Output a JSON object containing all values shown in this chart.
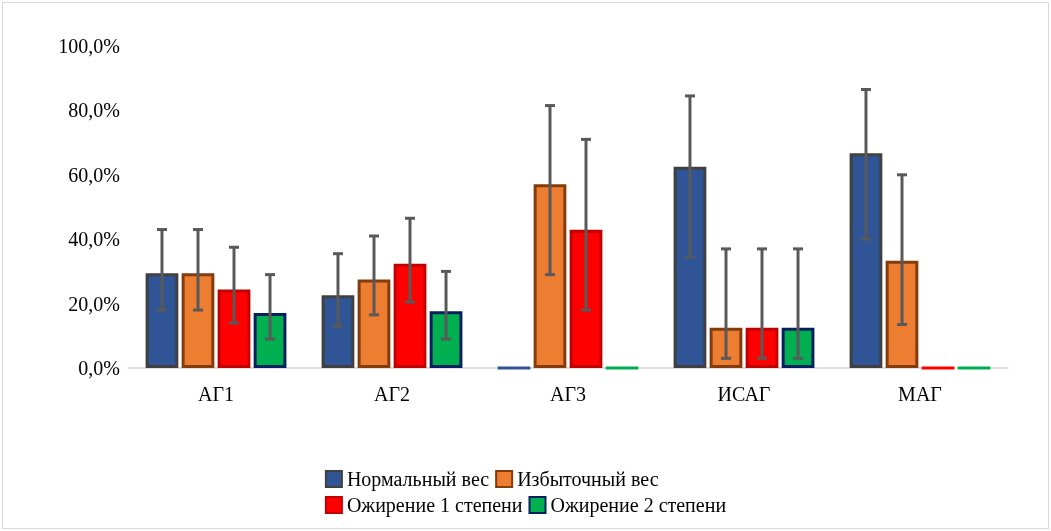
{
  "chart_data": {
    "type": "bar",
    "categories": [
      "АГ1",
      "АГ2",
      "АГ3",
      "ИСАГ",
      "МАГ"
    ],
    "series": [
      {
        "name": "Нормальный вес",
        "color": "#2f5597",
        "values": [
          29.4,
          22.6,
          0,
          62.5,
          66.7
        ],
        "errors": [
          [
            18,
            43
          ],
          [
            13,
            35.5
          ],
          null,
          [
            34.5,
            84.5
          ],
          [
            40,
            86.5
          ]
        ]
      },
      {
        "name": "Избыточный вес",
        "color": "#ed7d31",
        "values": [
          29.4,
          27.5,
          57.1,
          12.5,
          33.3
        ],
        "errors": [
          [
            18,
            43
          ],
          [
            16.5,
            41
          ],
          [
            29,
            81.5
          ],
          [
            3,
            37
          ],
          [
            13.5,
            60
          ]
        ]
      },
      {
        "name": "Ожирение 1 степени",
        "color": "#ff0000",
        "values": [
          24.4,
          32.4,
          42.9,
          12.5,
          0
        ],
        "errors": [
          [
            14,
            37.5
          ],
          [
            20.5,
            46.5
          ],
          [
            18,
            71
          ],
          [
            3,
            37
          ],
          null
        ]
      },
      {
        "name": "Ожирение 2 степени",
        "color": "#00b050",
        "values": [
          17.1,
          17.6,
          0,
          12.5,
          0
        ],
        "errors": [
          [
            9,
            29
          ],
          [
            9,
            30
          ],
          null,
          [
            3,
            37
          ],
          null
        ]
      }
    ],
    "ylim": [
      0,
      100
    ],
    "yticks": [
      {
        "value": 0,
        "label": "0,0%"
      },
      {
        "value": 20,
        "label": "20,0%"
      },
      {
        "value": 40,
        "label": "40,0%"
      },
      {
        "value": 60,
        "label": "60,0%"
      },
      {
        "value": 80,
        "label": "80,0%"
      },
      {
        "value": 100,
        "label": "100,0%"
      }
    ],
    "grid": false,
    "legend": "bottom"
  }
}
